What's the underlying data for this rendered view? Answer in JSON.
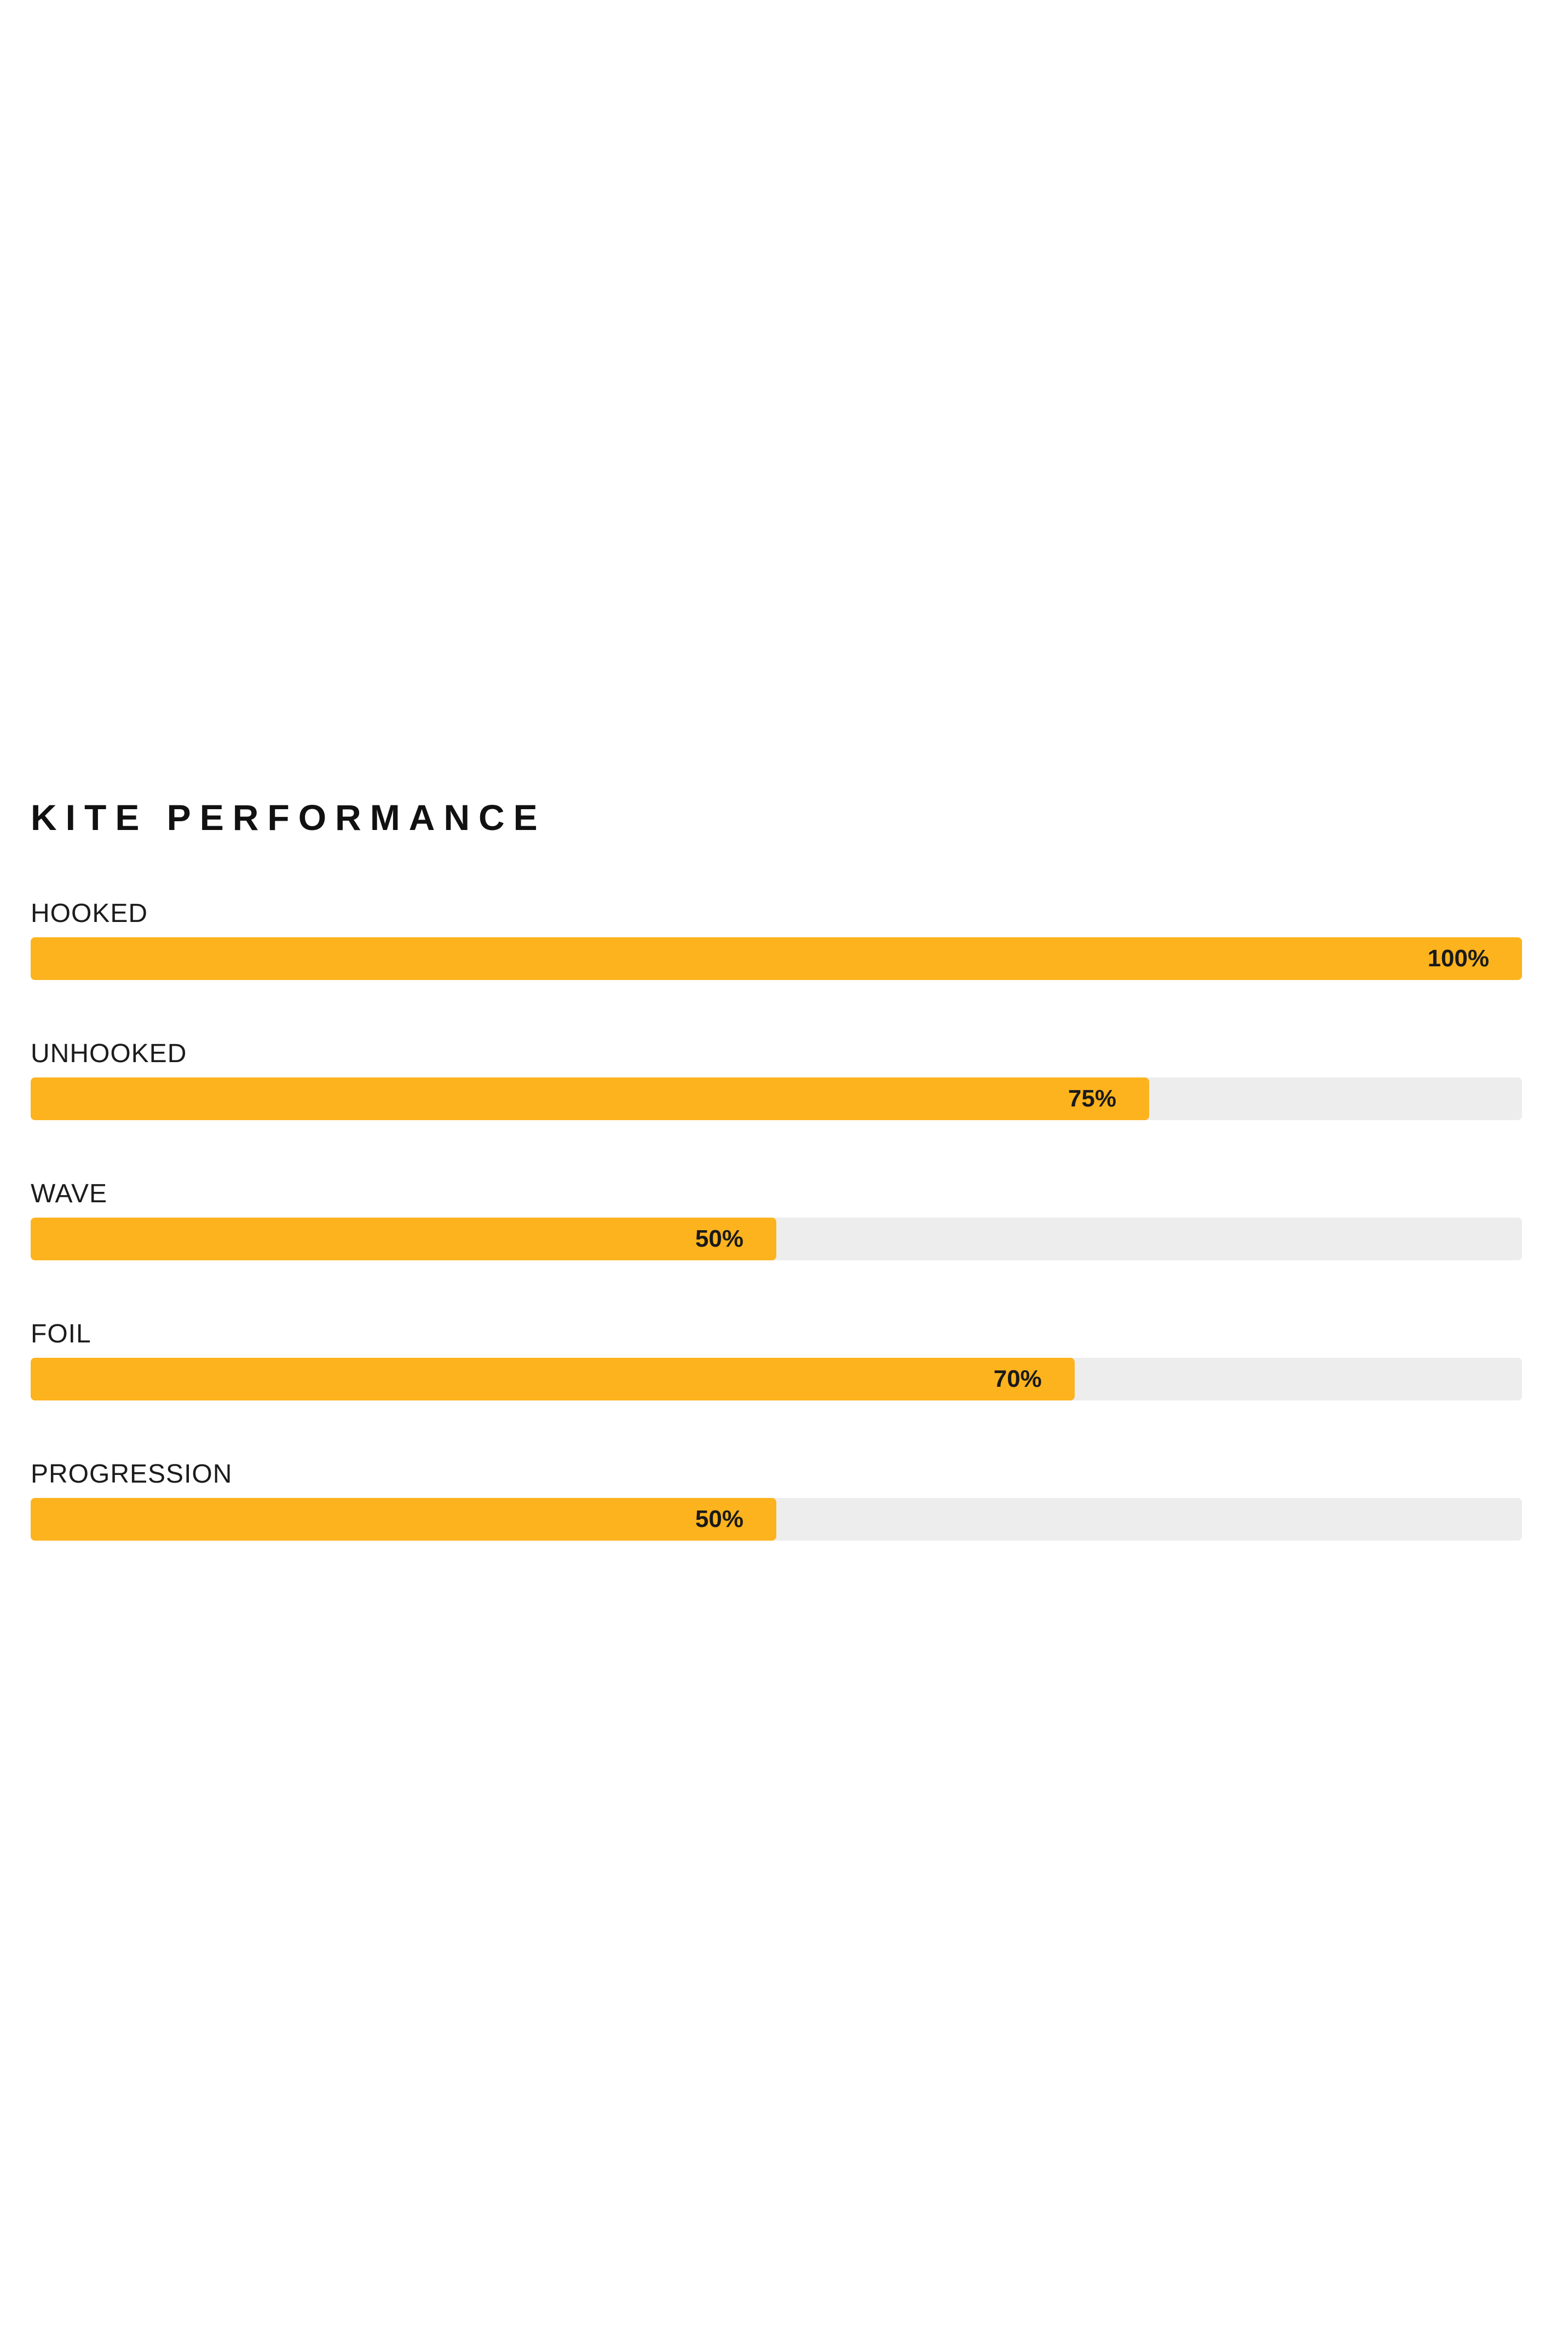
{
  "page": {
    "background_color": "#ffffff"
  },
  "chart_data": {
    "type": "bar",
    "orientation": "horizontal",
    "title": "KITE PERFORMANCE",
    "categories": [
      "HOOKED",
      "UNHOOKED",
      "WAVE",
      "FOIL",
      "PROGRESSION"
    ],
    "values": [
      100,
      75,
      50,
      70,
      50
    ],
    "value_labels": [
      "100%",
      "75%",
      "50%",
      "70%",
      "50%"
    ],
    "xlim": [
      0,
      100
    ],
    "grid": false,
    "legend": false,
    "bar_color": "#fcb31e",
    "track_color": "#ededed",
    "title_color": "#111111",
    "label_color": "#1c1c1c",
    "value_text_color": "#1a1a1a"
  }
}
